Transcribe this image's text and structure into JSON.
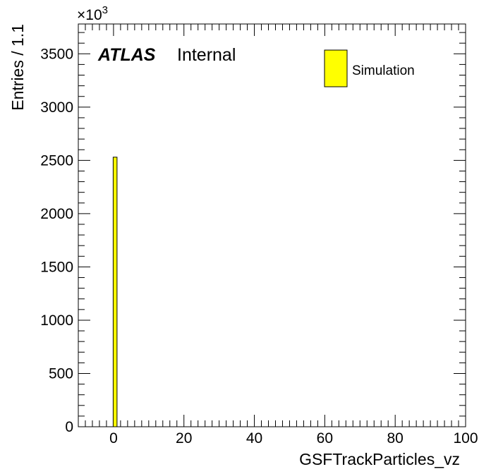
{
  "chart_data": {
    "type": "bar",
    "title": "",
    "xlabel": "GSFTrackParticles_vz",
    "ylabel": "Entries / 1.1",
    "xlim": [
      -10,
      100
    ],
    "ylim": [
      0,
      3780
    ],
    "x_ticks": [
      0,
      20,
      40,
      60,
      80,
      100
    ],
    "y_ticks": [
      0,
      500,
      1000,
      1500,
      2000,
      2500,
      3000,
      3500
    ],
    "y_multiplier_base": "×10",
    "y_multiplier_exp": "3",
    "bin_width": 1.1,
    "bins": [
      {
        "x_low": -0.1,
        "x_high": 1.0,
        "value": 2530
      }
    ],
    "series": [
      {
        "name": "Simulation",
        "color": "#ffff00",
        "edge_color": "#000000"
      }
    ],
    "annotations": {
      "experiment": "ATLAS",
      "status": "Internal"
    },
    "legend_position": "top-right",
    "grid": false
  }
}
